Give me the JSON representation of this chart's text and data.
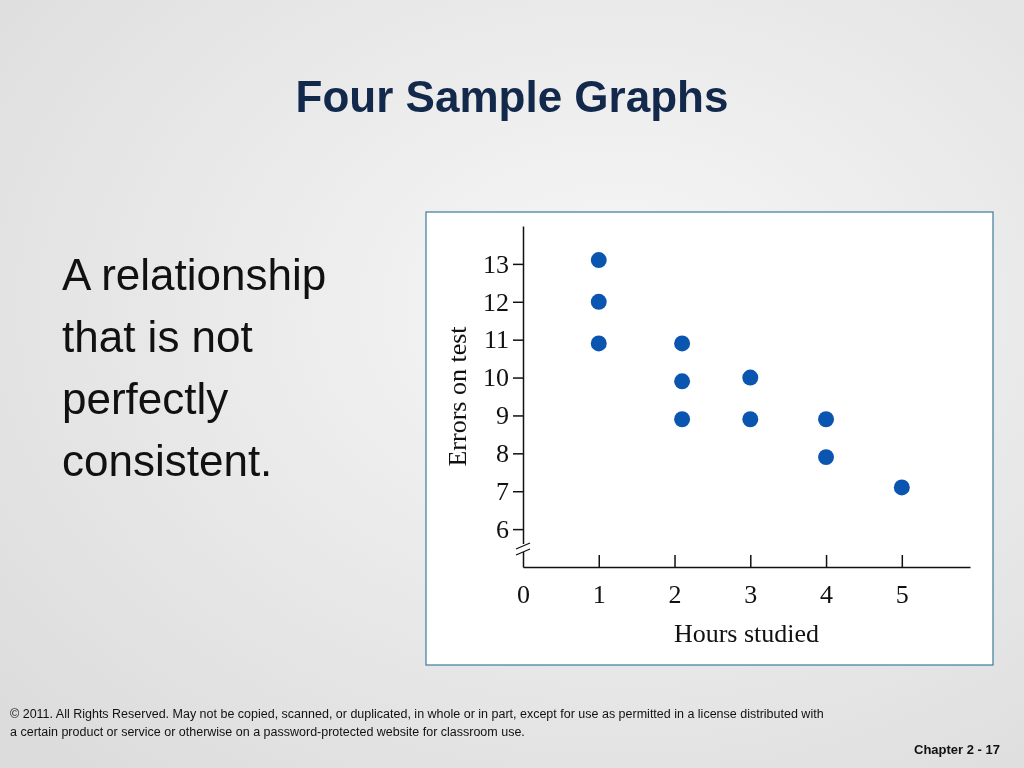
{
  "chart_data": {
    "type": "scatter",
    "title": "Four Sample Graphs",
    "subtitle": "A relationship that is not perfectly consistent.",
    "xlabel": "Hours studied",
    "ylabel": "Errors on test",
    "x": [
      1,
      1,
      1,
      2.1,
      2.1,
      2.1,
      3,
      3,
      4,
      4,
      5
    ],
    "series": [
      {
        "color": "#0a55b0",
        "values": [
          13.1,
          12,
          10.9,
          10.9,
          9.9,
          8.9,
          10,
          8.9,
          8.9,
          7.9,
          7.1
        ]
      }
    ],
    "xlim": [
      0,
      5.9
    ],
    "xticks": [
      0,
      1,
      2,
      3,
      4,
      5
    ],
    "ylim": [
      5,
      14
    ],
    "yticks": [
      6,
      7,
      8,
      9,
      10,
      11,
      12,
      13
    ],
    "marker": "circle",
    "annotations": [
      "© 2011. All Rights Reserved. May not be copied, scanned, or duplicated, in whole or in part, except for use as permitted in a license distributed with a certain product or service or otherwise on a password-protected website for classroom use.",
      "Chapter 2 - 17"
    ]
  }
}
